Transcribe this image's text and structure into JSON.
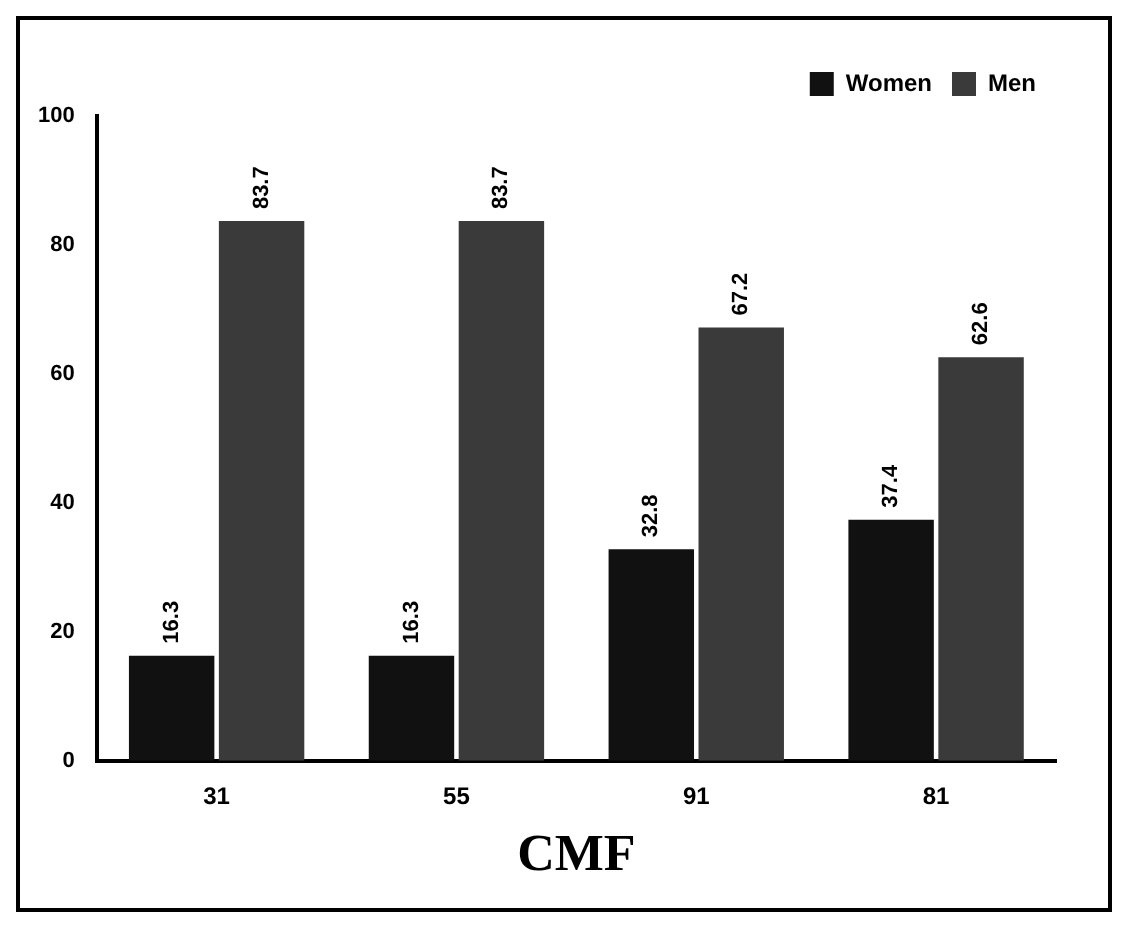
{
  "chart_data": {
    "type": "bar",
    "xlabel": "CMF",
    "categories": [
      "31",
      "55",
      "91",
      "81"
    ],
    "series": [
      {
        "name": "Women",
        "color": "#111111",
        "values": [
          16.3,
          16.3,
          32.8,
          37.4
        ]
      },
      {
        "name": "Men",
        "color": "#3a3a3a",
        "values": [
          83.7,
          83.7,
          67.2,
          62.6
        ]
      }
    ],
    "ylim": [
      0,
      100
    ],
    "yticks": [
      0,
      20,
      40,
      60,
      80,
      100
    ],
    "grid": false,
    "legend": "top right",
    "data_labels": true
  }
}
